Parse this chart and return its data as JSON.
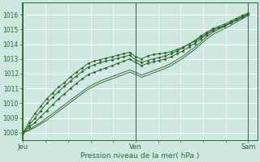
{
  "xlabel": "Pression niveau de la mer( hPa )",
  "bg_color": "#cce8e0",
  "grid_color": "#ffffff",
  "line_color": "#2d6a2d",
  "text_color": "#2d6a2d",
  "ylim": [
    1007.5,
    1016.8
  ],
  "yticks": [
    1008,
    1009,
    1010,
    1011,
    1012,
    1013,
    1014,
    1015,
    1016
  ],
  "xtick_labels": [
    "Jeu",
    "Ven",
    "Sam"
  ],
  "xtick_pos": [
    0.0,
    0.5,
    1.0
  ],
  "series_marker": [
    [
      1008.0,
      1008.7,
      1009.3,
      1009.8,
      1010.3,
      1010.7,
      1011.1,
      1011.4,
      1011.8,
      1012.1,
      1012.4,
      1012.7,
      1012.85,
      1012.95,
      1013.05,
      1013.15,
      1013.25,
      1013.35,
      1013.45,
      1013.15,
      1013.0,
      1013.2,
      1013.3,
      1013.35,
      1013.4,
      1013.5,
      1013.65,
      1013.8,
      1014.0,
      1014.2,
      1014.45,
      1014.7,
      1014.95,
      1015.1,
      1015.25,
      1015.45,
      1015.65,
      1015.85,
      1016.05
    ],
    [
      1008.0,
      1008.5,
      1009.0,
      1009.5,
      1010.0,
      1010.4,
      1010.8,
      1011.15,
      1011.5,
      1011.85,
      1012.15,
      1012.45,
      1012.6,
      1012.75,
      1012.85,
      1012.95,
      1013.05,
      1013.15,
      1013.25,
      1012.95,
      1012.75,
      1012.9,
      1013.0,
      1013.1,
      1013.2,
      1013.35,
      1013.55,
      1013.75,
      1014.0,
      1014.25,
      1014.55,
      1014.8,
      1015.05,
      1015.2,
      1015.35,
      1015.55,
      1015.75,
      1015.95,
      1016.1
    ],
    [
      1008.0,
      1008.35,
      1008.7,
      1009.1,
      1009.5,
      1009.9,
      1010.3,
      1010.65,
      1011.0,
      1011.35,
      1011.65,
      1011.95,
      1012.1,
      1012.25,
      1012.4,
      1012.55,
      1012.7,
      1012.85,
      1013.0,
      1012.75,
      1012.55,
      1012.7,
      1012.8,
      1012.9,
      1013.0,
      1013.15,
      1013.35,
      1013.55,
      1013.8,
      1014.05,
      1014.35,
      1014.65,
      1014.9,
      1015.1,
      1015.25,
      1015.45,
      1015.65,
      1015.85,
      1016.0
    ]
  ],
  "series_smooth": [
    [
      1008.0,
      1008.2,
      1008.45,
      1008.7,
      1009.0,
      1009.3,
      1009.6,
      1009.9,
      1010.2,
      1010.5,
      1010.8,
      1011.1,
      1011.3,
      1011.5,
      1011.65,
      1011.8,
      1011.95,
      1012.1,
      1012.25,
      1012.1,
      1011.9,
      1012.05,
      1012.2,
      1012.35,
      1012.5,
      1012.7,
      1012.95,
      1013.2,
      1013.5,
      1013.8,
      1014.15,
      1014.5,
      1014.8,
      1015.0,
      1015.2,
      1015.4,
      1015.6,
      1015.8,
      1016.0
    ],
    [
      1008.0,
      1008.15,
      1008.35,
      1008.6,
      1008.85,
      1009.15,
      1009.45,
      1009.75,
      1010.05,
      1010.35,
      1010.65,
      1010.95,
      1011.15,
      1011.35,
      1011.5,
      1011.65,
      1011.8,
      1011.95,
      1012.1,
      1011.95,
      1011.75,
      1011.9,
      1012.05,
      1012.2,
      1012.35,
      1012.55,
      1012.8,
      1013.05,
      1013.35,
      1013.65,
      1014.0,
      1014.35,
      1014.65,
      1014.85,
      1015.05,
      1015.25,
      1015.5,
      1015.7,
      1015.95
    ]
  ]
}
